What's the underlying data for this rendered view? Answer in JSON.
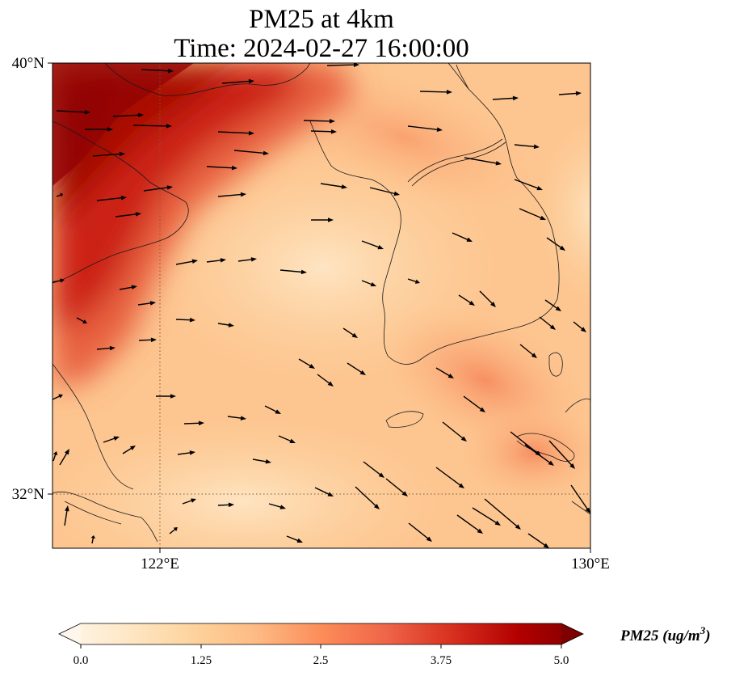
{
  "title": {
    "line1": "PM25 at 4km",
    "line2": "Time: 2024-02-27 16:00:00"
  },
  "axes": {
    "lat_labels": [
      "40°N",
      "32°N"
    ],
    "lon_labels": [
      "122°E",
      "130°E"
    ]
  },
  "colorbar": {
    "label": "PM25 (ug/m",
    "label_sup": "3",
    "label_close": ")",
    "ticks": [
      "0.0",
      "1.25",
      "2.5",
      "3.75",
      "5.0"
    ],
    "colormap": "OrRd",
    "colors": [
      "#fff7ec",
      "#fee8c8",
      "#fdd49e",
      "#fdbb84",
      "#fc8d59",
      "#ef6548",
      "#d7301f",
      "#b30000",
      "#7f0000"
    ],
    "extend": "both"
  },
  "map": {
    "lon_range": [
      120,
      130
    ],
    "lat_range": [
      31,
      40
    ],
    "gridlines": "dotted at 122°E and 32°N",
    "projection": "PlateCarree",
    "field": "PM25 concentration with wind vectors"
  }
}
